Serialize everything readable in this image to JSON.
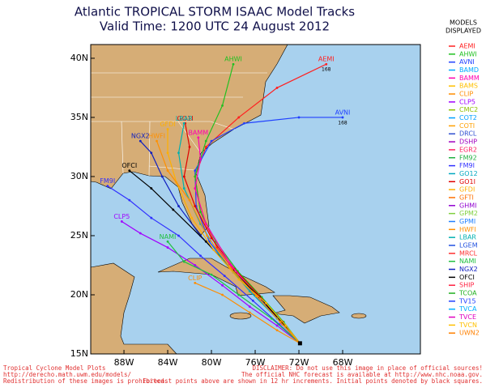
{
  "title": "Atlantic TROPICAL STORM ISAAC Model Tracks",
  "subtitle": "Valid Time: 1200 UTC 24 August 2012",
  "legend": {
    "title": [
      "MODELS",
      "DISPLAYED"
    ],
    "models": [
      {
        "name": "AEMI",
        "color": "#ff2020"
      },
      {
        "name": "AHWI",
        "color": "#20c020"
      },
      {
        "name": "AVNI",
        "color": "#2040ff"
      },
      {
        "name": "BAMD",
        "color": "#00a8ff"
      },
      {
        "name": "BAMM",
        "color": "#ff00b0"
      },
      {
        "name": "BAMS",
        "color": "#ffc000"
      },
      {
        "name": "CLIP",
        "color": "#ff8c00"
      },
      {
        "name": "CLP5",
        "color": "#a000ff"
      },
      {
        "name": "CMC2",
        "color": "#90c000"
      },
      {
        "name": "COT2",
        "color": "#00a0ff"
      },
      {
        "name": "COTI",
        "color": "#ffa000"
      },
      {
        "name": "DRCL",
        "color": "#3050d0"
      },
      {
        "name": "DSHP",
        "color": "#a000c0"
      },
      {
        "name": "EGR2",
        "color": "#ff2060"
      },
      {
        "name": "FM92",
        "color": "#20b040"
      },
      {
        "name": "FM9I",
        "color": "#3030ff"
      },
      {
        "name": "GO12",
        "color": "#00a8c0"
      },
      {
        "name": "GO1I",
        "color": "#e00000"
      },
      {
        "name": "GFDI",
        "color": "#ffb000"
      },
      {
        "name": "GFTI",
        "color": "#ff7000"
      },
      {
        "name": "GHMI",
        "color": "#9000d0"
      },
      {
        "name": "GPM2",
        "color": "#80d040"
      },
      {
        "name": "GPMI",
        "color": "#2080ff"
      },
      {
        "name": "HWFI",
        "color": "#ff9000"
      },
      {
        "name": "LBAR",
        "color": "#00b0b0"
      },
      {
        "name": "LGEM",
        "color": "#2050e0"
      },
      {
        "name": "MRCL",
        "color": "#ff3030"
      },
      {
        "name": "NAMI",
        "color": "#20c040"
      },
      {
        "name": "NGX2",
        "color": "#1020c0"
      },
      {
        "name": "OFCI",
        "color": "#000000"
      },
      {
        "name": "SHIP",
        "color": "#ff2040"
      },
      {
        "name": "TCOA",
        "color": "#20b020"
      },
      {
        "name": "TV15",
        "color": "#2040ff"
      },
      {
        "name": "TVCA",
        "color": "#00b0ff"
      },
      {
        "name": "TVCE",
        "color": "#e000c0"
      },
      {
        "name": "TVCN",
        "color": "#ffc000"
      },
      {
        "name": "UWN2",
        "color": "#ff8000"
      }
    ]
  },
  "map": {
    "xlim": [
      -91.04,
      -60.89
    ],
    "ylim": [
      15,
      41.16
    ],
    "xticks": [
      {
        "value": -88,
        "label": "88W"
      },
      {
        "value": -84,
        "label": "84W"
      },
      {
        "value": -80,
        "label": "80W"
      },
      {
        "value": -76,
        "label": "76W"
      },
      {
        "value": -72,
        "label": "72W"
      },
      {
        "value": -68,
        "label": "68W"
      }
    ],
    "yticks": [
      {
        "value": 15,
        "label": "15N"
      },
      {
        "value": 20,
        "label": "20N"
      },
      {
        "value": 25,
        "label": "25N"
      },
      {
        "value": 30,
        "label": "30N"
      },
      {
        "value": 35,
        "label": "35N"
      },
      {
        "value": 40,
        "label": "40N"
      }
    ],
    "initial": {
      "lon": -71.9,
      "lat": 15.9
    },
    "tracks": [
      {
        "name": "AEMI",
        "color": "#ff2020",
        "final_hour": 168,
        "lon": [
          -71.9,
          -73.5,
          -75.5,
          -77.5,
          -79.5,
          -81,
          -81.5,
          -80.5,
          -77.5,
          -74,
          -69.5
        ],
        "lat": [
          15.9,
          17.5,
          19.5,
          21.5,
          24,
          27,
          30,
          32.5,
          35,
          37.5,
          39.5
        ]
      },
      {
        "name": "AVNI",
        "color": "#2040ff",
        "final_hour": 168,
        "lon": [
          -71.9,
          -73.6,
          -75.7,
          -78,
          -80.2,
          -81.4,
          -81.5,
          -80,
          -77,
          -72,
          -68
        ],
        "lat": [
          15.9,
          17.6,
          19.7,
          21.9,
          24.5,
          27.5,
          30.5,
          33,
          34.5,
          35,
          35
        ]
      },
      {
        "name": "AHWI",
        "color": "#20c020",
        "lon": [
          -71.9,
          -73.4,
          -75.4,
          -77.6,
          -79.6,
          -81,
          -81.5,
          -80.5,
          -79,
          -78
        ],
        "lat": [
          15.9,
          17.7,
          19.8,
          22,
          24.5,
          27,
          30,
          33,
          36,
          39.5
        ]
      },
      {
        "name": "NGX2",
        "color": "#1020c0",
        "lon": [
          -71.9,
          -73.7,
          -76,
          -78.5,
          -81,
          -83,
          -84.5,
          -85.5,
          -86.5
        ],
        "lat": [
          15.9,
          17.8,
          20,
          22.5,
          25,
          27.5,
          30,
          32,
          33
        ]
      },
      {
        "name": "GO1I",
        "color": "#e00000",
        "lon": [
          -71.9,
          -73.5,
          -75.6,
          -77.9,
          -80,
          -81.5,
          -82.5,
          -82,
          -82.4
        ],
        "lat": [
          15.9,
          17.7,
          19.9,
          22.2,
          24.8,
          27.5,
          30,
          32.5,
          34.5
        ]
      },
      {
        "name": "BAMM",
        "color": "#ff00b0",
        "lon": [
          -71.9,
          -73.6,
          -75.8,
          -78.2,
          -80.5,
          -81.5,
          -81,
          -81.2
        ],
        "lat": [
          15.9,
          17.6,
          19.8,
          22.5,
          26,
          29,
          31.5,
          33.3
        ]
      },
      {
        "name": "OFCI",
        "color": "#000000",
        "lon": [
          -71.9,
          -73.5,
          -75.6,
          -78,
          -80.5,
          -83.5,
          -85.5,
          -87.5
        ],
        "lat": [
          15.9,
          17.6,
          19.8,
          22,
          24.5,
          27.2,
          29,
          30.5
        ]
      },
      {
        "name": "FM9I",
        "color": "#3030ff",
        "lon": [
          -71.9,
          -73.8,
          -76.2,
          -78.8,
          -81,
          -83,
          -85.5,
          -87.5,
          -89.5
        ],
        "lat": [
          15.9,
          17.5,
          19.5,
          21.6,
          23.3,
          25,
          26.5,
          28,
          29.2
        ]
      },
      {
        "name": "CLP5",
        "color": "#a000ff",
        "lon": [
          -71.9,
          -74,
          -76.5,
          -79,
          -81.5,
          -84,
          -86.5,
          -88.2
        ],
        "lat": [
          15.9,
          17.4,
          19,
          20.8,
          22.5,
          24,
          25.2,
          26.2
        ]
      },
      {
        "name": "NAMI",
        "color": "#20c040",
        "lon": [
          -71.9,
          -74.5,
          -77.5,
          -80,
          -82.5,
          -84
        ],
        "lat": [
          15.9,
          18,
          20,
          21.7,
          22.8,
          24.5
        ]
      },
      {
        "name": "CLIP",
        "color": "#ff8c00",
        "lon": [
          -71.9,
          -74,
          -76.5,
          -79,
          -81.5
        ],
        "lat": [
          15.9,
          17,
          18.5,
          20,
          21
        ]
      },
      {
        "name": "LBAR",
        "color": "#00b0b0",
        "lon": [
          -71.9,
          -74,
          -76.5,
          -79,
          -81,
          -82.5,
          -83,
          -82.5
        ],
        "lat": [
          15.9,
          18,
          20.3,
          23,
          26,
          29,
          32,
          34.5
        ]
      },
      {
        "name": "GFDI",
        "color": "#ffb000",
        "lon": [
          -71.9,
          -73.2,
          -75,
          -77.5,
          -79.8,
          -81.8,
          -83.2,
          -84,
          -84
        ],
        "lat": [
          15.9,
          17.4,
          19.3,
          21.3,
          23.8,
          26.5,
          29.5,
          32,
          34
        ]
      },
      {
        "name": "HWFI",
        "color": "#ff9000",
        "lon": [
          -71.9,
          -73.7,
          -75.9,
          -78.3,
          -80.4,
          -82,
          -84,
          -85
        ],
        "lat": [
          15.9,
          17.7,
          19.9,
          22.3,
          25,
          28,
          30.5,
          33
        ]
      }
    ]
  },
  "footer": {
    "left": [
      "Tropical Cyclone Model Plots",
      "http://derecho.math.uwm.edu/models/",
      "Redistribution of these images is prohibited."
    ],
    "right": [
      "DISCLAIMER: Do not use this image in place of official sources!",
      "The official NHC forecast is available at http://www.nhc.noaa.gov.",
      "Forecast points above are shown in 12 hr increments. Initial points denoted by black squares."
    ]
  }
}
